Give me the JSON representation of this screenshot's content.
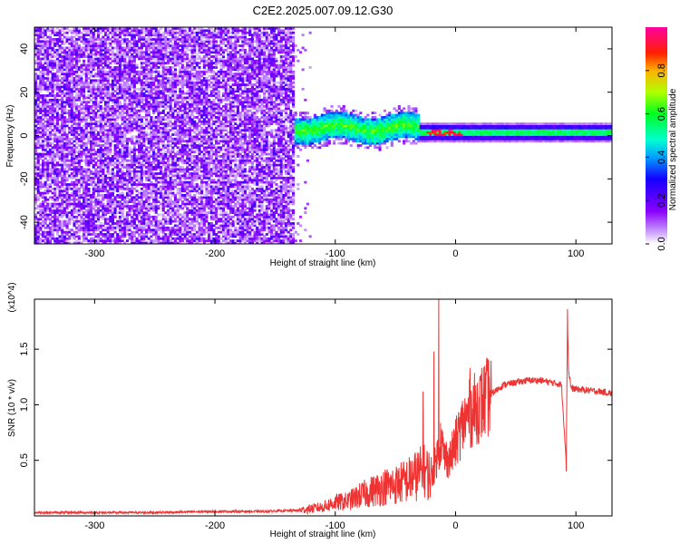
{
  "title": "C2E2.2025.007.09.12.G30",
  "colors": {
    "spectrogram_low": "#7a00ff",
    "snr_line": "#ee3333",
    "axis": "#000000"
  },
  "chart_data": [
    {
      "type": "heatmap",
      "xlabel": "Height of straight line (km)",
      "ylabel": "Frequency (Hz)",
      "xlim": [
        -350,
        130
      ],
      "ylim": [
        -50,
        50
      ],
      "xticks": [
        -300,
        -200,
        -100,
        0,
        100
      ],
      "xtick_labels": [
        "-300",
        "-200",
        "-100",
        "0",
        "100"
      ],
      "yticks": [
        -40,
        -20,
        0,
        20,
        40
      ],
      "ytick_labels": [
        "-40",
        "-20",
        "0",
        "20",
        "40"
      ],
      "colorbar": {
        "label": "Normalized spectral amplitude",
        "range": [
          0,
          1
        ],
        "ticks": [
          0.0,
          0.2,
          0.4,
          0.6,
          0.8
        ],
        "tick_labels": [
          "0.0",
          "0.2",
          "0.4",
          "0.6",
          "0.8"
        ],
        "colormap": "rainbow (violet-blue-cyan-green-yellow-red-magenta)"
      },
      "regions": [
        {
          "x": [
            -350,
            -135
          ],
          "description": "broadband noise across full frequency range, amplitude ~0.05-0.2"
        },
        {
          "x": [
            -150,
            -30
          ],
          "freq_center": 3,
          "freq_halfwidth": 6,
          "amplitude": 0.45
        },
        {
          "x": [
            -30,
            130
          ],
          "freq_center": 1,
          "freq_halfwidth": 3,
          "amplitude": 0.55
        },
        {
          "x": [
            -25,
            5
          ],
          "freq_center": 1,
          "amplitude": 0.9,
          "description": "strong peaks"
        }
      ]
    },
    {
      "type": "line",
      "xlabel": "Height of straight line (km)",
      "ylabel": "SNR (10 * v/v)",
      "y_multiplier": "(x10^4)",
      "xlim": [
        -350,
        130
      ],
      "ylim": [
        0,
        1.95
      ],
      "xticks": [
        -300,
        -200,
        -100,
        0,
        100
      ],
      "xtick_labels": [
        "-300",
        "-200",
        "-100",
        "0",
        "100"
      ],
      "yticks": [
        0.5,
        1.0,
        1.5
      ],
      "ytick_labels": [
        "0.5",
        "1.0",
        "1.5"
      ],
      "series": [
        {
          "x": [
            -350,
            -300,
            -250,
            -200,
            -160,
            -130,
            -110,
            -100,
            -90,
            -80,
            -70,
            -60,
            -50,
            -40,
            -30,
            -25,
            -20,
            -15,
            -12,
            -10,
            -5,
            0,
            5,
            10,
            15,
            20,
            30,
            40,
            50,
            60,
            70,
            80,
            88,
            92,
            93,
            94,
            96,
            100,
            110,
            120,
            130
          ],
          "y": [
            0.03,
            0.03,
            0.03,
            0.04,
            0.04,
            0.05,
            0.08,
            0.12,
            0.13,
            0.18,
            0.22,
            0.26,
            0.28,
            0.32,
            0.38,
            0.4,
            0.35,
            0.55,
            0.7,
            0.55,
            0.5,
            0.65,
            0.8,
            0.9,
            0.95,
            1.0,
            1.1,
            1.18,
            1.2,
            1.22,
            1.22,
            1.2,
            1.18,
            0.5,
            1.75,
            1.3,
            1.15,
            1.14,
            1.13,
            1.12,
            1.1
          ]
        }
      ],
      "spikes": [
        {
          "x": -14,
          "y": 1.95
        },
        {
          "x": -18,
          "y": 1.48
        },
        {
          "x": -27,
          "y": 1.12
        },
        {
          "x": 12,
          "y": 1.33
        },
        {
          "x": 93,
          "y": 1.86
        },
        {
          "x": 92,
          "y": 0.4
        }
      ]
    }
  ]
}
